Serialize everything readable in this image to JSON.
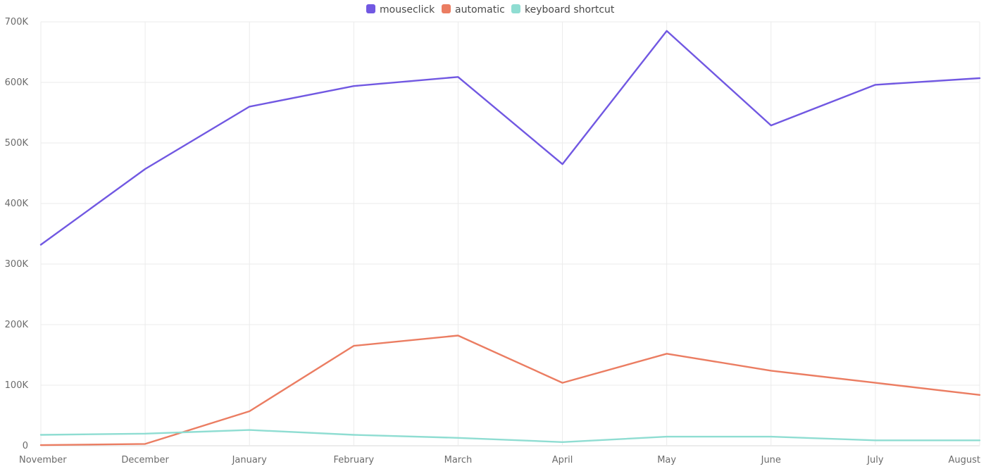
{
  "chart_data": {
    "type": "line",
    "categories": [
      "November",
      "December",
      "January",
      "February",
      "March",
      "April",
      "May",
      "June",
      "July",
      "August"
    ],
    "series": [
      {
        "name": "mouseclick",
        "color": "#7158e2",
        "values": [
          332000,
          457000,
          560000,
          594000,
          609000,
          465000,
          685000,
          529000,
          596000,
          607000
        ]
      },
      {
        "name": "automatic",
        "color": "#eb7d62",
        "values": [
          1000,
          3000,
          57000,
          165000,
          182000,
          104000,
          152000,
          124000,
          104000,
          84000
        ]
      },
      {
        "name": "keyboard shortcut",
        "color": "#8fddd2",
        "values": [
          18000,
          20000,
          26000,
          18000,
          13000,
          6000,
          15000,
          15000,
          9000,
          9000
        ]
      }
    ],
    "y_ticks": [
      "0",
      "100K",
      "200K",
      "300K",
      "400K",
      "500K",
      "600K",
      "700K"
    ],
    "ylim": [
      0,
      700000
    ],
    "xlabel": "",
    "ylabel": "",
    "grid": true,
    "legend_position": "top-center"
  }
}
